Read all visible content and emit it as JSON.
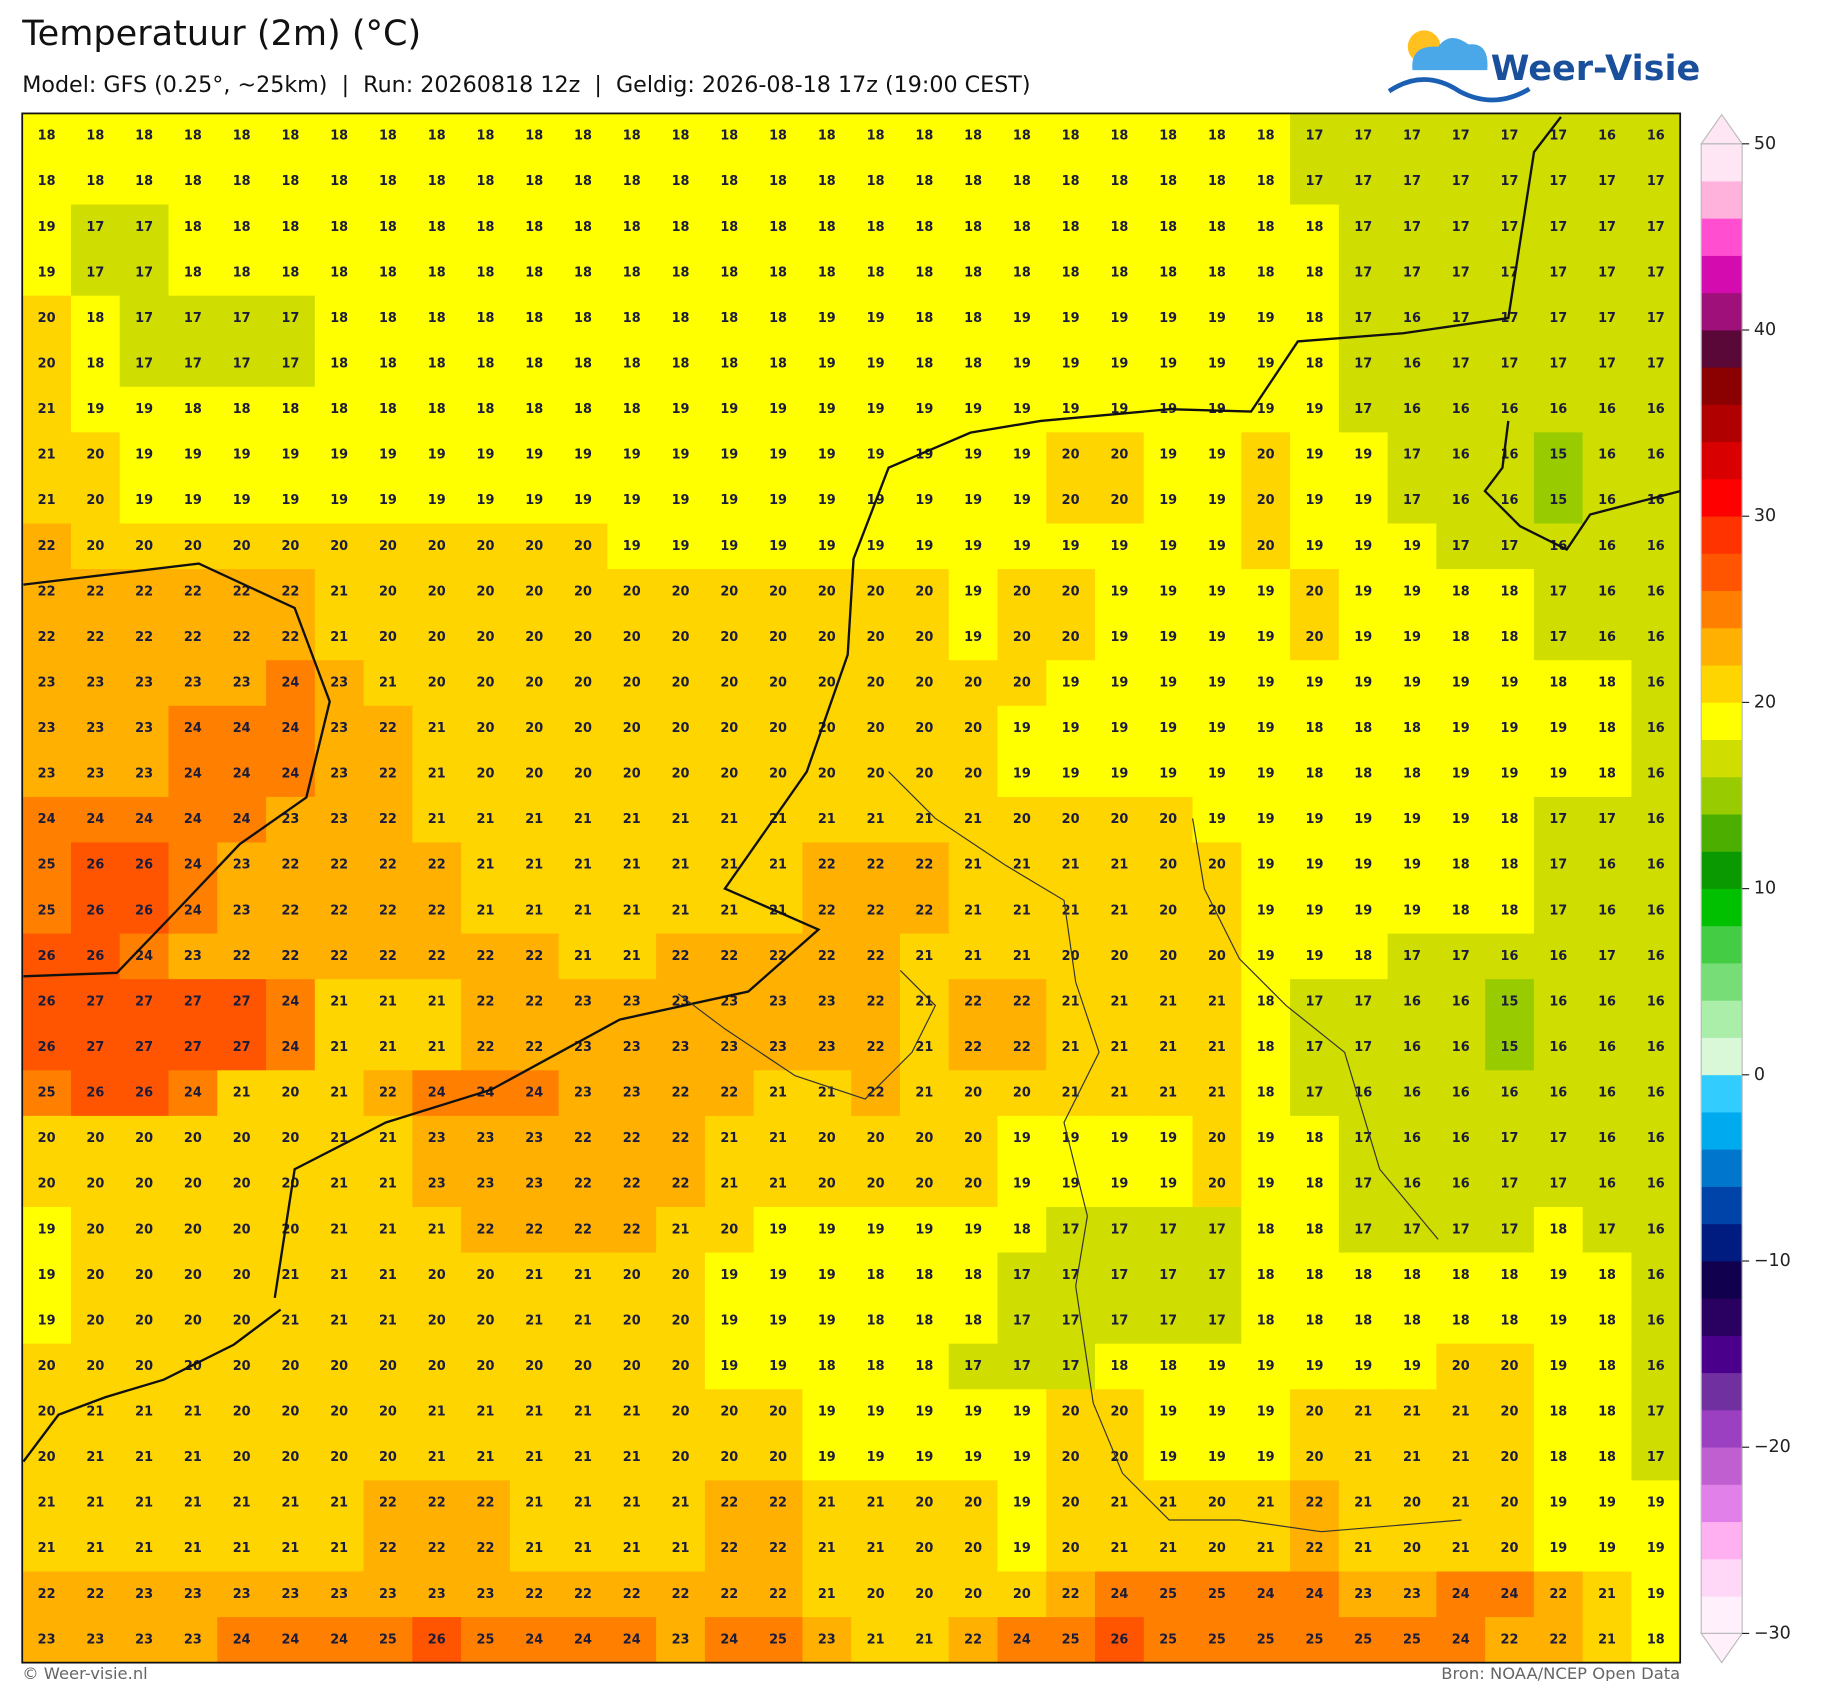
{
  "map": {
    "title": "Temperatuur (2m) (°C)",
    "subtitle": "Model: GFS (0.25°, ~25km)  |  Run: 20260818 12z  |  Geldig: 2026-08-18 17z (19:00 CEST)",
    "logo": "Weer-Visie",
    "footer_left": "© Weer-visie.nl",
    "footer_right": "Bron: NOAA/NCEP Open Data",
    "grid": {
      "rows": [
        [
          18,
          18,
          18,
          18,
          18,
          18,
          18,
          18,
          18,
          18,
          18,
          18,
          18,
          18,
          18,
          18,
          18,
          18,
          18,
          18,
          18,
          18,
          18,
          18,
          18,
          18,
          17,
          17,
          17,
          17,
          17,
          17,
          16,
          16
        ],
        [
          18,
          18,
          18,
          18,
          18,
          18,
          18,
          18,
          18,
          18,
          18,
          18,
          18,
          18,
          18,
          18,
          18,
          18,
          18,
          18,
          18,
          18,
          18,
          18,
          18,
          18,
          17,
          17,
          17,
          17,
          17,
          17,
          17,
          17
        ],
        [
          19,
          17,
          17,
          18,
          18,
          18,
          18,
          18,
          18,
          18,
          18,
          18,
          18,
          18,
          18,
          18,
          18,
          18,
          18,
          18,
          18,
          18,
          18,
          18,
          18,
          18,
          18,
          17,
          17,
          17,
          17,
          17,
          17,
          17
        ],
        [
          19,
          17,
          17,
          18,
          18,
          18,
          18,
          18,
          18,
          18,
          18,
          18,
          18,
          18,
          18,
          18,
          18,
          18,
          18,
          18,
          18,
          18,
          18,
          18,
          18,
          18,
          18,
          17,
          17,
          17,
          17,
          17,
          17,
          17
        ],
        [
          20,
          18,
          17,
          17,
          17,
          17,
          18,
          18,
          18,
          18,
          18,
          18,
          18,
          18,
          18,
          18,
          19,
          19,
          18,
          18,
          19,
          19,
          19,
          19,
          19,
          19,
          18,
          17,
          16,
          17,
          17,
          17,
          17,
          17
        ],
        [
          20,
          18,
          17,
          17,
          17,
          17,
          18,
          18,
          18,
          18,
          18,
          18,
          18,
          18,
          18,
          18,
          19,
          19,
          18,
          18,
          19,
          19,
          19,
          19,
          19,
          19,
          18,
          17,
          16,
          17,
          17,
          17,
          17,
          17
        ],
        [
          21,
          19,
          19,
          18,
          18,
          18,
          18,
          18,
          18,
          18,
          18,
          18,
          18,
          19,
          19,
          19,
          19,
          19,
          19,
          19,
          19,
          19,
          19,
          19,
          19,
          19,
          19,
          17,
          16,
          16,
          16,
          16,
          16,
          16
        ],
        [
          21,
          20,
          19,
          19,
          19,
          19,
          19,
          19,
          19,
          19,
          19,
          19,
          19,
          19,
          19,
          19,
          19,
          19,
          19,
          19,
          19,
          20,
          20,
          19,
          19,
          20,
          19,
          19,
          17,
          16,
          16,
          15,
          16,
          16
        ],
        [
          21,
          20,
          19,
          19,
          19,
          19,
          19,
          19,
          19,
          19,
          19,
          19,
          19,
          19,
          19,
          19,
          19,
          19,
          19,
          19,
          19,
          20,
          20,
          19,
          19,
          20,
          19,
          19,
          17,
          16,
          16,
          15,
          16,
          16
        ],
        [
          22,
          20,
          20,
          20,
          20,
          20,
          20,
          20,
          20,
          20,
          20,
          20,
          19,
          19,
          19,
          19,
          19,
          19,
          19,
          19,
          19,
          19,
          19,
          19,
          19,
          20,
          19,
          19,
          19,
          17,
          17,
          16,
          16,
          16
        ],
        [
          22,
          22,
          22,
          22,
          22,
          22,
          21,
          20,
          20,
          20,
          20,
          20,
          20,
          20,
          20,
          20,
          20,
          20,
          20,
          19,
          20,
          20,
          19,
          19,
          19,
          19,
          20,
          19,
          19,
          18,
          18,
          17,
          16,
          16
        ],
        [
          22,
          22,
          22,
          22,
          22,
          22,
          21,
          20,
          20,
          20,
          20,
          20,
          20,
          20,
          20,
          20,
          20,
          20,
          20,
          19,
          20,
          20,
          19,
          19,
          19,
          19,
          20,
          19,
          19,
          18,
          18,
          17,
          16,
          16
        ],
        [
          23,
          23,
          23,
          23,
          23,
          24,
          23,
          21,
          20,
          20,
          20,
          20,
          20,
          20,
          20,
          20,
          20,
          20,
          20,
          20,
          20,
          19,
          19,
          19,
          19,
          19,
          19,
          19,
          19,
          19,
          19,
          18,
          18,
          16
        ],
        [
          23,
          23,
          23,
          24,
          24,
          24,
          23,
          22,
          21,
          20,
          20,
          20,
          20,
          20,
          20,
          20,
          20,
          20,
          20,
          20,
          19,
          19,
          19,
          19,
          19,
          19,
          18,
          18,
          18,
          19,
          19,
          19,
          18,
          16
        ],
        [
          23,
          23,
          23,
          24,
          24,
          24,
          23,
          22,
          21,
          20,
          20,
          20,
          20,
          20,
          20,
          20,
          20,
          20,
          20,
          20,
          19,
          19,
          19,
          19,
          19,
          19,
          18,
          18,
          18,
          19,
          19,
          19,
          18,
          16
        ],
        [
          24,
          24,
          24,
          24,
          24,
          23,
          23,
          22,
          21,
          21,
          21,
          21,
          21,
          21,
          21,
          21,
          21,
          21,
          21,
          21,
          20,
          20,
          20,
          20,
          19,
          19,
          19,
          19,
          19,
          19,
          18,
          17,
          17,
          16
        ],
        [
          25,
          26,
          26,
          24,
          23,
          22,
          22,
          22,
          22,
          21,
          21,
          21,
          21,
          21,
          21,
          21,
          22,
          22,
          22,
          21,
          21,
          21,
          21,
          20,
          20,
          19,
          19,
          19,
          19,
          18,
          18,
          17,
          16,
          16
        ],
        [
          25,
          26,
          26,
          24,
          23,
          22,
          22,
          22,
          22,
          21,
          21,
          21,
          21,
          21,
          21,
          21,
          22,
          22,
          22,
          21,
          21,
          21,
          21,
          20,
          20,
          19,
          19,
          19,
          19,
          18,
          18,
          17,
          16,
          16
        ],
        [
          26,
          26,
          24,
          23,
          22,
          22,
          22,
          22,
          22,
          22,
          22,
          21,
          21,
          22,
          22,
          22,
          22,
          22,
          21,
          21,
          21,
          20,
          20,
          20,
          20,
          19,
          19,
          18,
          17,
          17,
          16,
          16,
          17,
          16
        ],
        [
          26,
          27,
          27,
          27,
          27,
          24,
          21,
          21,
          21,
          22,
          22,
          23,
          23,
          23,
          23,
          23,
          23,
          22,
          21,
          22,
          22,
          21,
          21,
          21,
          21,
          18,
          17,
          17,
          16,
          16,
          15,
          16,
          16,
          16
        ],
        [
          26,
          27,
          27,
          27,
          27,
          24,
          21,
          21,
          21,
          22,
          22,
          23,
          23,
          23,
          23,
          23,
          23,
          22,
          21,
          22,
          22,
          21,
          21,
          21,
          21,
          18,
          17,
          17,
          16,
          16,
          15,
          16,
          16,
          16
        ],
        [
          25,
          26,
          26,
          24,
          21,
          20,
          21,
          22,
          24,
          24,
          24,
          23,
          23,
          22,
          22,
          21,
          21,
          22,
          21,
          20,
          20,
          21,
          21,
          21,
          21,
          18,
          17,
          16,
          16,
          16,
          16,
          16,
          16,
          16
        ],
        [
          20,
          20,
          20,
          20,
          20,
          20,
          21,
          21,
          23,
          23,
          23,
          22,
          22,
          22,
          21,
          21,
          20,
          20,
          20,
          20,
          19,
          19,
          19,
          19,
          20,
          19,
          18,
          17,
          16,
          16,
          17,
          17,
          16,
          16
        ],
        [
          20,
          20,
          20,
          20,
          20,
          20,
          21,
          21,
          23,
          23,
          23,
          22,
          22,
          22,
          21,
          21,
          20,
          20,
          20,
          20,
          19,
          19,
          19,
          19,
          20,
          19,
          18,
          17,
          16,
          16,
          17,
          17,
          16,
          16
        ],
        [
          19,
          20,
          20,
          20,
          20,
          20,
          21,
          21,
          21,
          22,
          22,
          22,
          22,
          21,
          20,
          19,
          19,
          19,
          19,
          19,
          18,
          17,
          17,
          17,
          17,
          18,
          18,
          17,
          17,
          17,
          17,
          18,
          17,
          16
        ],
        [
          19,
          20,
          20,
          20,
          20,
          21,
          21,
          21,
          20,
          20,
          21,
          21,
          20,
          20,
          19,
          19,
          19,
          18,
          18,
          18,
          17,
          17,
          17,
          17,
          17,
          18,
          18,
          18,
          18,
          18,
          18,
          19,
          18,
          16
        ],
        [
          19,
          20,
          20,
          20,
          20,
          21,
          21,
          21,
          20,
          20,
          21,
          21,
          20,
          20,
          19,
          19,
          19,
          18,
          18,
          18,
          17,
          17,
          17,
          17,
          17,
          18,
          18,
          18,
          18,
          18,
          18,
          19,
          18,
          16
        ],
        [
          20,
          20,
          20,
          20,
          20,
          20,
          20,
          20,
          20,
          20,
          20,
          20,
          20,
          20,
          19,
          19,
          18,
          18,
          18,
          17,
          17,
          17,
          18,
          18,
          19,
          19,
          19,
          19,
          19,
          20,
          20,
          19,
          18,
          16
        ],
        [
          20,
          21,
          21,
          21,
          20,
          20,
          20,
          20,
          21,
          21,
          21,
          21,
          21,
          20,
          20,
          20,
          19,
          19,
          19,
          19,
          19,
          20,
          20,
          19,
          19,
          19,
          20,
          21,
          21,
          21,
          20,
          18,
          18,
          17
        ],
        [
          20,
          21,
          21,
          21,
          20,
          20,
          20,
          20,
          21,
          21,
          21,
          21,
          21,
          20,
          20,
          20,
          19,
          19,
          19,
          19,
          19,
          20,
          20,
          19,
          19,
          19,
          20,
          21,
          21,
          21,
          20,
          18,
          18,
          17
        ],
        [
          21,
          21,
          21,
          21,
          21,
          21,
          21,
          22,
          22,
          22,
          21,
          21,
          21,
          21,
          22,
          22,
          21,
          21,
          20,
          20,
          19,
          20,
          21,
          21,
          20,
          21,
          22,
          21,
          20,
          21,
          20,
          19,
          19,
          19
        ],
        [
          21,
          21,
          21,
          21,
          21,
          21,
          21,
          22,
          22,
          22,
          21,
          21,
          21,
          21,
          22,
          22,
          21,
          21,
          20,
          20,
          19,
          20,
          21,
          21,
          20,
          21,
          22,
          21,
          20,
          21,
          20,
          19,
          19,
          19
        ],
        [
          22,
          22,
          23,
          23,
          23,
          23,
          23,
          23,
          23,
          23,
          22,
          22,
          22,
          22,
          22,
          22,
          21,
          20,
          20,
          20,
          20,
          22,
          24,
          25,
          25,
          24,
          24,
          23,
          23,
          24,
          24,
          22,
          21,
          19
        ],
        [
          23,
          23,
          23,
          23,
          24,
          24,
          24,
          25,
          26,
          25,
          24,
          24,
          24,
          23,
          24,
          25,
          23,
          21,
          21,
          22,
          24,
          25,
          26,
          25,
          25,
          25,
          25,
          25,
          25,
          24,
          22,
          22,
          21,
          18
        ]
      ]
    },
    "colorbar": {
      "lim": [
        -30,
        50
      ],
      "ticks": [
        {
          "value": -30,
          "label": "−30"
        },
        {
          "value": -20,
          "label": "−20"
        },
        {
          "value": -10,
          "label": "−10"
        },
        0,
        10,
        20,
        30,
        40,
        50
      ],
      "colors": [
        "#fff0fc",
        "#ffd8f8",
        "#ffb0f0",
        "#e080e8",
        "#c060d0",
        "#9a40c0",
        "#7030a0",
        "#4a008a",
        "#2a0060",
        "#10004d",
        "#001c80",
        "#0044aa",
        "#0077cc",
        "#00aaee",
        "#33ccff",
        "#d8f8d8",
        "#aaeeaa",
        "#77dd77",
        "#44cc44",
        "#00c000",
        "#0a9900",
        "#4caf00",
        "#99cc00",
        "#cfdd00",
        "#ffff00",
        "#ffd500",
        "#ffb000",
        "#ff8000",
        "#ff5500",
        "#ff3300",
        "#ff0000",
        "#d80000",
        "#b00000",
        "#8b0000",
        "#5a0838",
        "#a0107a",
        "#d40cb0",
        "#ff4fd0",
        "#ffb3dc",
        "#ffe6f5"
      ]
    }
  }
}
